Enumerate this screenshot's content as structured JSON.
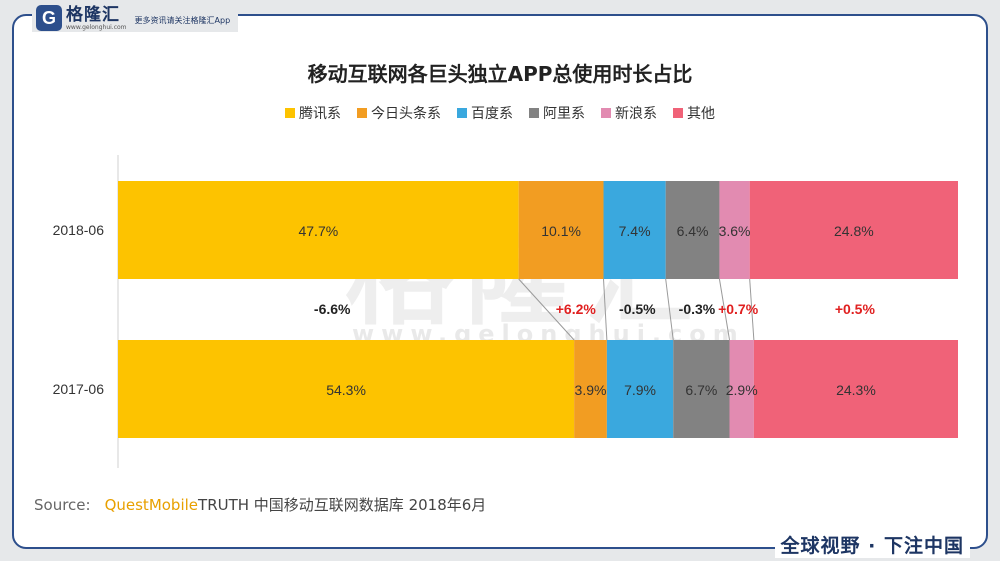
{
  "header": {
    "logo_letter": "G",
    "brand_name": "格隆汇",
    "brand_url": "www.gelonghui.com",
    "slogan": "更多资讯请关注格隆汇App"
  },
  "watermark": {
    "text": "格隆汇",
    "url": "www.gelonghui.com"
  },
  "source": {
    "label": "Source:",
    "brand": "QuestMobile",
    "rest": " TRUTH 中国移动互联网数据库 2018年6月"
  },
  "footer": {
    "slogan": "全球视野 · 下注中国"
  },
  "chart_data": {
    "type": "bar",
    "orientation": "horizontal",
    "stacked": true,
    "percent_stacked": true,
    "title": "移动互联网各巨头独立APP总使用时长占比",
    "legend_position": "top",
    "categories": [
      "2018-06",
      "2017-06"
    ],
    "series": [
      {
        "name": "腾讯系",
        "color": "#fdc300",
        "values": [
          47.7,
          54.3
        ],
        "labels": [
          "47.7%",
          "54.3%"
        ]
      },
      {
        "name": "今日头条系",
        "color": "#f29d22",
        "values": [
          10.1,
          3.9
        ],
        "labels": [
          "10.1%",
          "3.9%"
        ]
      },
      {
        "name": "百度系",
        "color": "#3aa8de",
        "values": [
          7.4,
          7.9
        ],
        "labels": [
          "7.4%",
          "7.9%"
        ]
      },
      {
        "name": "阿里系",
        "color": "#828282",
        "values": [
          6.4,
          6.7
        ],
        "labels": [
          "6.4%",
          "6.7%"
        ]
      },
      {
        "name": "新浪系",
        "color": "#e28bb1",
        "values": [
          3.6,
          2.9
        ],
        "labels": [
          "3.6%",
          "2.9%"
        ]
      },
      {
        "name": "其他",
        "color": "#f06278",
        "values": [
          24.8,
          24.3
        ],
        "labels": [
          "24.8%",
          "24.3%"
        ]
      }
    ],
    "changes": [
      {
        "label": "-6.6%",
        "color": "#222222"
      },
      {
        "label": "+6.2%",
        "color": "#e02020"
      },
      {
        "label": "-0.5%",
        "color": "#222222"
      },
      {
        "label": "-0.3%",
        "color": "#222222"
      },
      {
        "label": "+0.7%",
        "color": "#e02020"
      },
      {
        "label": "+0.5%",
        "color": "#e02020"
      }
    ]
  }
}
